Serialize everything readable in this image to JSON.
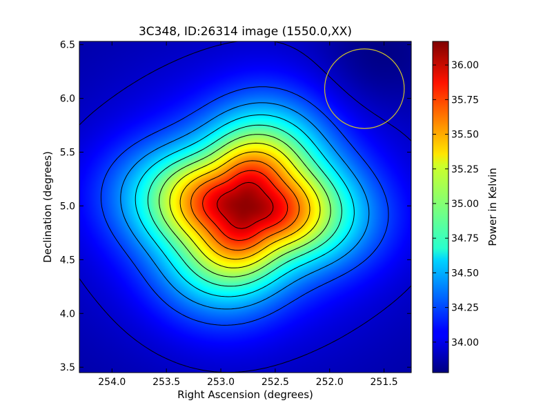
{
  "chart_data": {
    "type": "heatmap",
    "title": "3C348, ID:26314 image (1550.0,XX)",
    "xlabel": "Right Ascension (degrees)",
    "ylabel": "Declination (degrees)",
    "colorbar_label": "Power in Kelvin",
    "colormap": "jet",
    "xlim": [
      254.3,
      251.25
    ],
    "ylim": [
      3.45,
      6.53
    ],
    "x_ticks": [
      "254.0",
      "253.5",
      "253.0",
      "252.5",
      "252.0",
      "251.5"
    ],
    "y_ticks": [
      "3.5",
      "4.0",
      "4.5",
      "5.0",
      "5.5",
      "6.0",
      "6.5"
    ],
    "colorbar_ticks": [
      "34.00",
      "34.25",
      "34.50",
      "34.75",
      "35.00",
      "35.25",
      "35.50",
      "35.75",
      "36.00"
    ],
    "colorbar_range": [
      33.78,
      36.17
    ],
    "peak": {
      "ra": 252.78,
      "dec": 5.0,
      "value": 36.17
    },
    "background_level": 33.82,
    "contours": [
      33.93,
      34.2,
      34.4,
      34.6,
      34.8,
      35.0,
      35.2,
      35.4,
      35.6,
      35.8,
      36.0
    ],
    "beam_circle": {
      "ra": 251.68,
      "dec": 6.09,
      "radius_deg": 0.37,
      "color": "#d2c42a"
    }
  }
}
